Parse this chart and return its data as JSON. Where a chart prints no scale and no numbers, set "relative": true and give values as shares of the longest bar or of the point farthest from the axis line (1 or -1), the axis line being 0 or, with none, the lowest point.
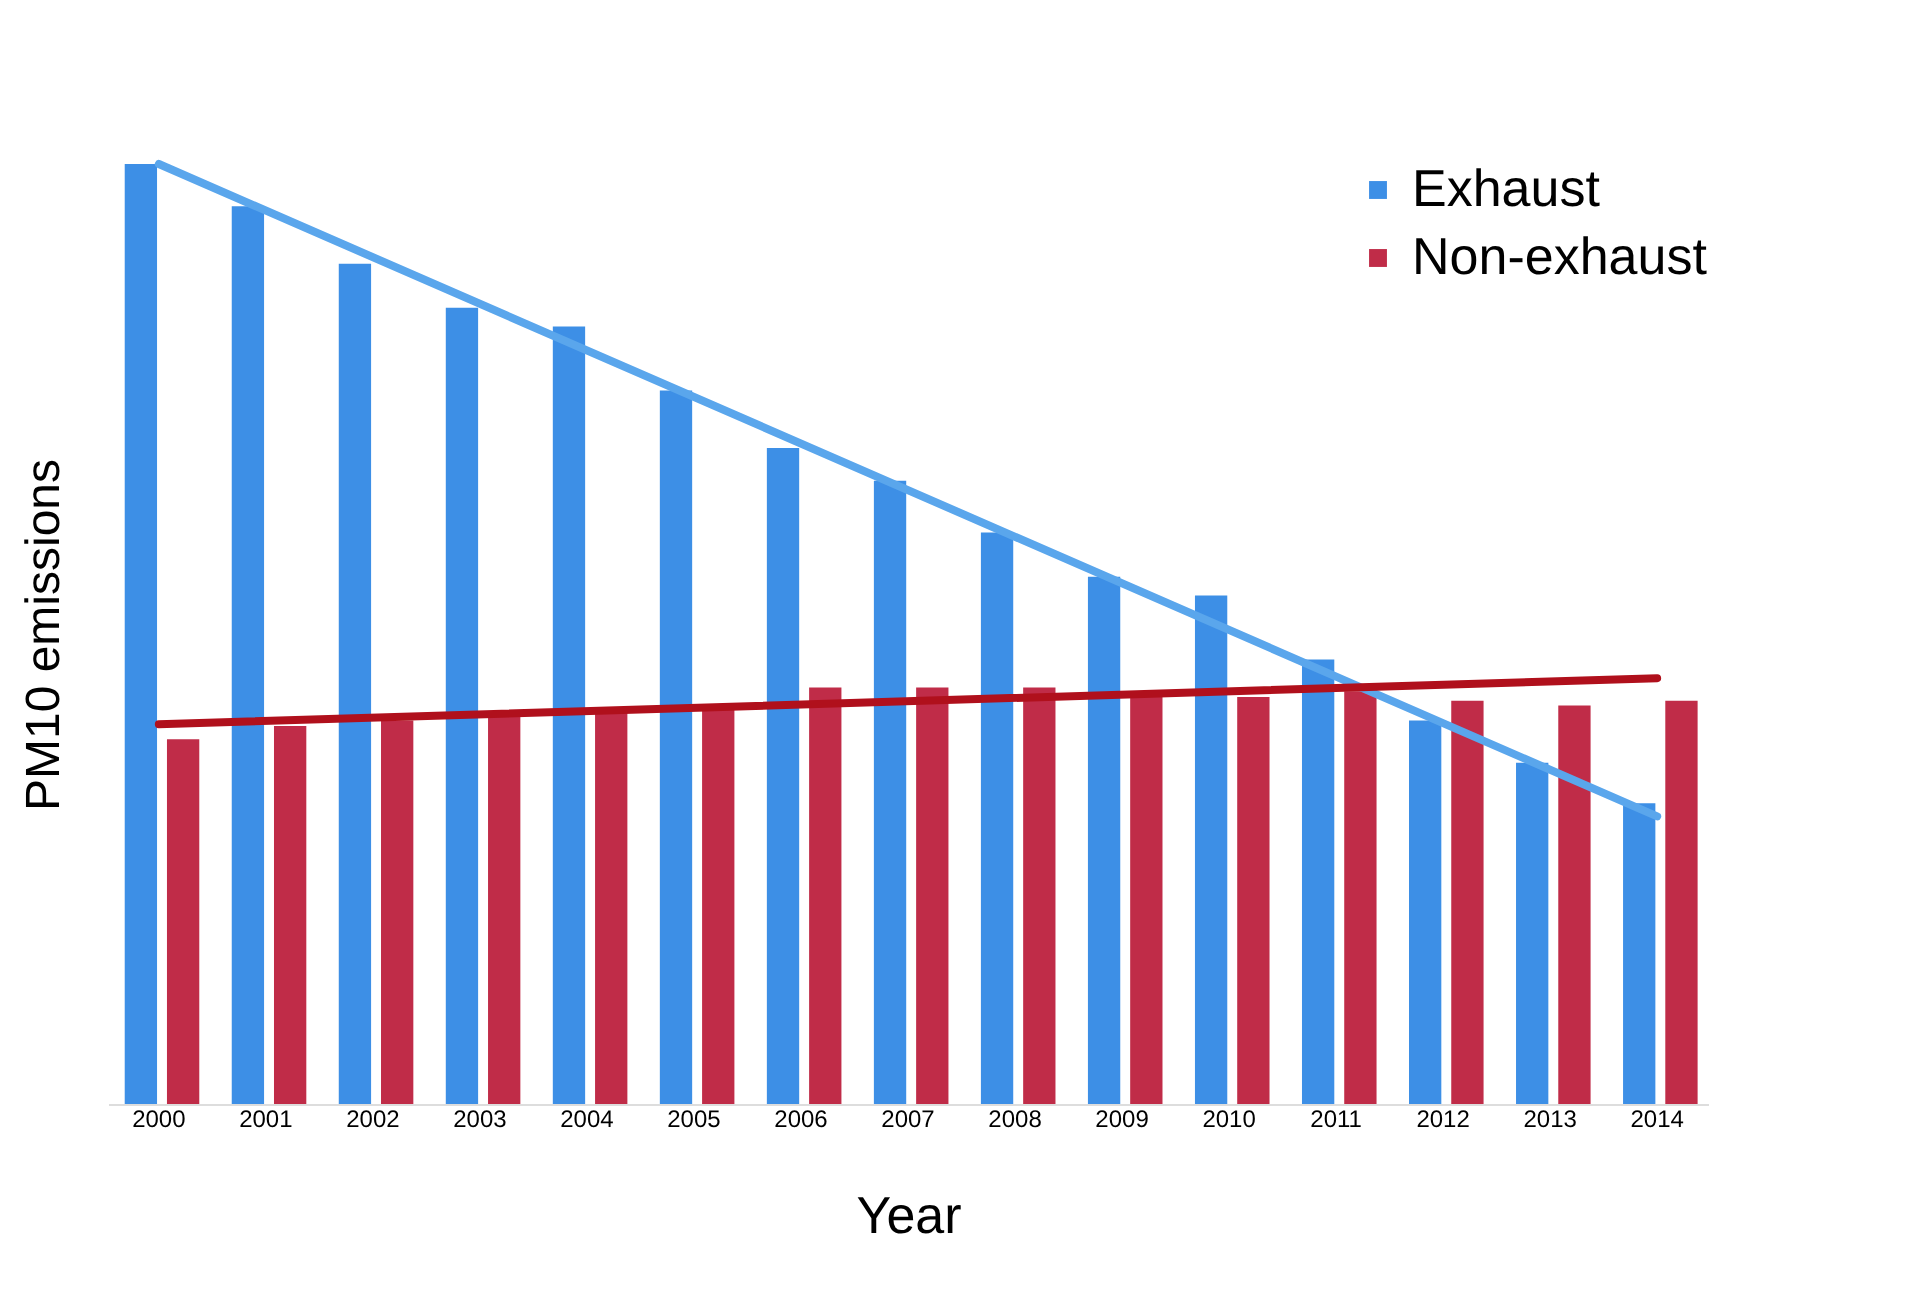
{
  "chart_data": {
    "type": "bar",
    "relative": true,
    "xlabel": "Year",
    "ylabel": "PM10 emissions",
    "legend": "top right",
    "grid": false,
    "categories": [
      "2000",
      "2001",
      "2002",
      "2003",
      "2004",
      "2005",
      "2006",
      "2007",
      "2008",
      "2009",
      "2010",
      "2011",
      "2012",
      "2013",
      "2014"
    ],
    "series": [
      {
        "name": "Exhaust",
        "color": "#3d8fe6",
        "values": [
          1.0,
          0.955,
          0.894,
          0.847,
          0.827,
          0.759,
          0.698,
          0.663,
          0.608,
          0.561,
          0.541,
          0.473,
          0.408,
          0.363,
          0.32
        ]
      },
      {
        "name": "Non-exhaust",
        "color": "#c02c48",
        "values": [
          0.388,
          0.402,
          0.408,
          0.418,
          0.422,
          0.422,
          0.443,
          0.443,
          0.443,
          0.433,
          0.433,
          0.439,
          0.429,
          0.424,
          0.429
        ]
      },
      {
        "type": "line",
        "color": "#5aa6ec",
        "values": [
          1.0,
          null,
          null,
          null,
          null,
          null,
          null,
          null,
          null,
          null,
          null,
          null,
          null,
          null,
          0.306
        ]
      },
      {
        "type": "line",
        "color": "#b0101c",
        "values": [
          0.404,
          null,
          null,
          null,
          null,
          null,
          null,
          null,
          null,
          null,
          null,
          null,
          null,
          null,
          0.453
        ]
      }
    ]
  }
}
